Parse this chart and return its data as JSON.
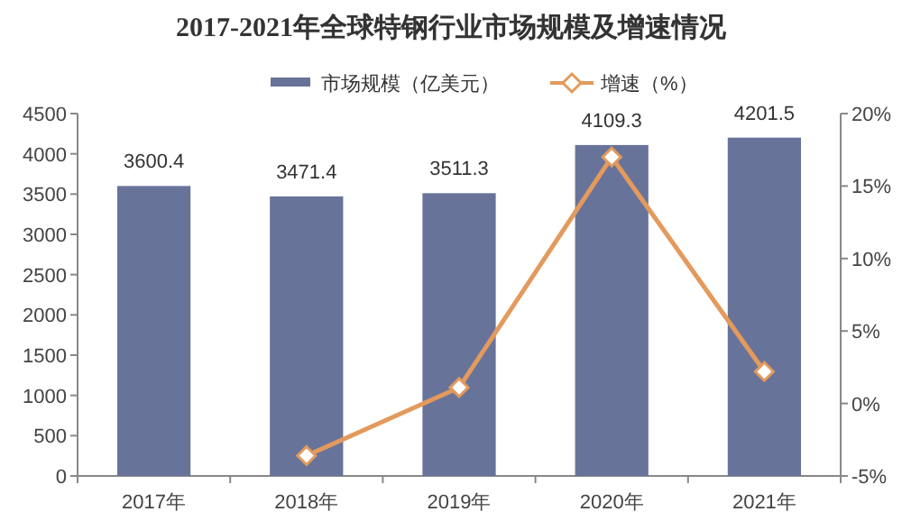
{
  "chart_data": {
    "type": "bar",
    "title": "2017-2021年全球特钢行业市场规模及增速情况",
    "categories": [
      "2017年",
      "2018年",
      "2019年",
      "2020年",
      "2021年"
    ],
    "series": [
      {
        "name": "市场规模（亿美元）",
        "color": "#68739a",
        "values": [
          3600.4,
          3471.4,
          3511.3,
          4109.3,
          4201.5
        ],
        "value_labels": [
          "3600.4",
          "3471.4",
          "3511.3",
          "4109.3",
          "4201.5"
        ]
      },
      {
        "name": "增速（%）",
        "type": "line",
        "axis": "y2",
        "color": "#e39a5c",
        "marker": "diamond",
        "values": [
          null,
          -3.6,
          1.1,
          17.0,
          2.2
        ]
      }
    ],
    "legend": "top",
    "grid": false,
    "ylim": [
      0,
      4500
    ],
    "yticks": [
      0,
      500,
      1000,
      1500,
      2000,
      2500,
      3000,
      3500,
      4000,
      4500
    ],
    "y2lim": [
      -5,
      20
    ],
    "y2ticks": [
      {
        "value": -5,
        "label": "-5%"
      },
      {
        "value": 0,
        "label": "0%"
      },
      {
        "value": 5,
        "label": "5%"
      },
      {
        "value": 10,
        "label": "10%"
      },
      {
        "value": 15,
        "label": "15%"
      },
      {
        "value": 20,
        "label": "20%"
      }
    ]
  }
}
